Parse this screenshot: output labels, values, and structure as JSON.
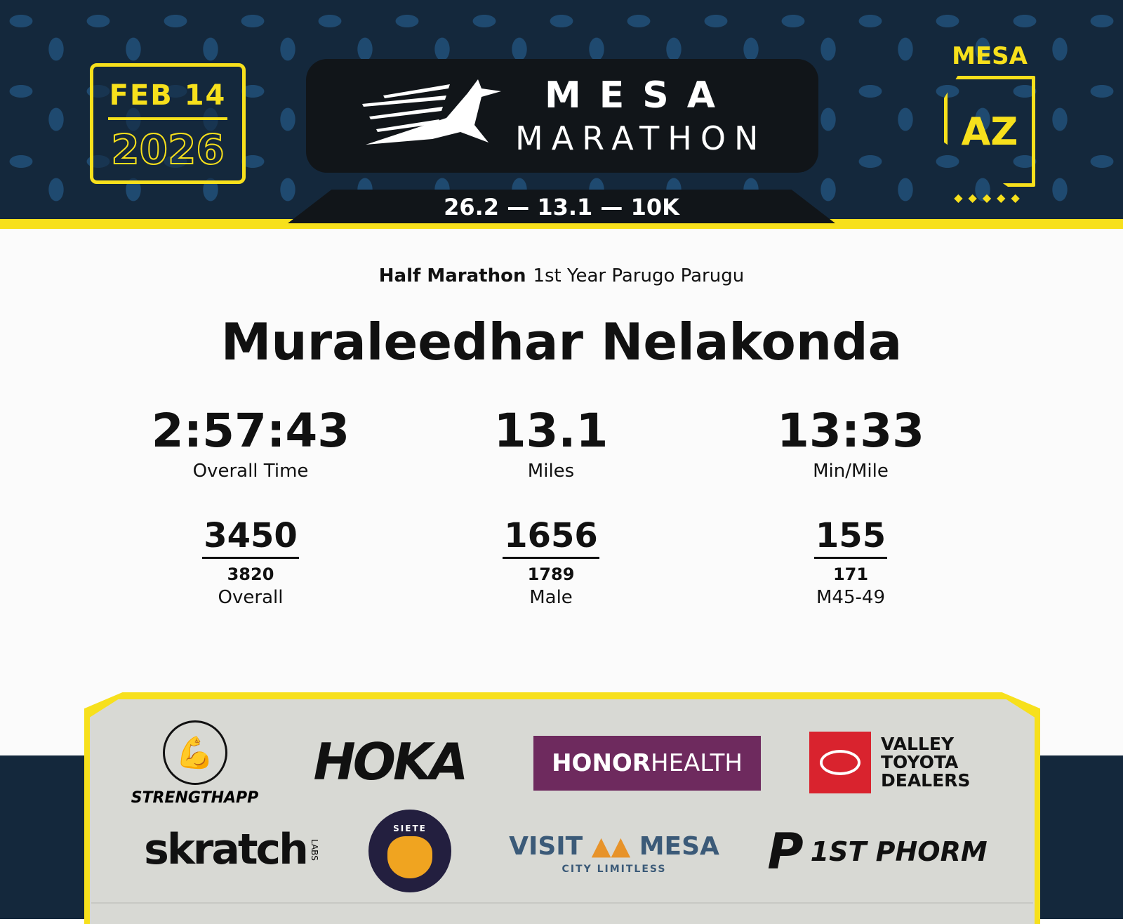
{
  "header": {
    "date": "FEB 14",
    "year": "2026",
    "logo_top": "MESA",
    "logo_bottom": "MARATHON",
    "distances": "26.2 — 13.1 — 10K",
    "city": "MESA",
    "state": "AZ",
    "dots": "◆◆◆◆◆"
  },
  "result": {
    "race": "Half Marathon",
    "team": "1st Year Parugo Parugu",
    "runner": "Muraleedhar Nelakonda",
    "stats": [
      {
        "value": "2:57:43",
        "label": "Overall Time"
      },
      {
        "value": "13.1",
        "label": "Miles"
      },
      {
        "value": "13:33",
        "label": "Min/Mile"
      }
    ],
    "ranks": [
      {
        "place": "3450",
        "total": "3820",
        "label": "Overall"
      },
      {
        "place": "1656",
        "total": "1789",
        "label": "Male"
      },
      {
        "place": "155",
        "total": "171",
        "label": "M45-49"
      }
    ]
  },
  "sponsors": {
    "strengthapp": "STRENGTHAPP",
    "hoka": "HOKA",
    "honor": "HONOR",
    "health": "HEALTH",
    "toyota": "VALLEY TOYOTA DEALERS",
    "skratch": "skratch",
    "labs": "LABS",
    "siete": "SIETE",
    "visit": "VISIT",
    "mesa": "MESA",
    "city_limitless": "CITY LIMITLESS",
    "phorm": "1ST PHORM"
  },
  "colors": {
    "navy": "#14283c",
    "yellow": "#f7e01c",
    "honor_purple": "#6e2a5e",
    "toyota_red": "#d9232e"
  }
}
